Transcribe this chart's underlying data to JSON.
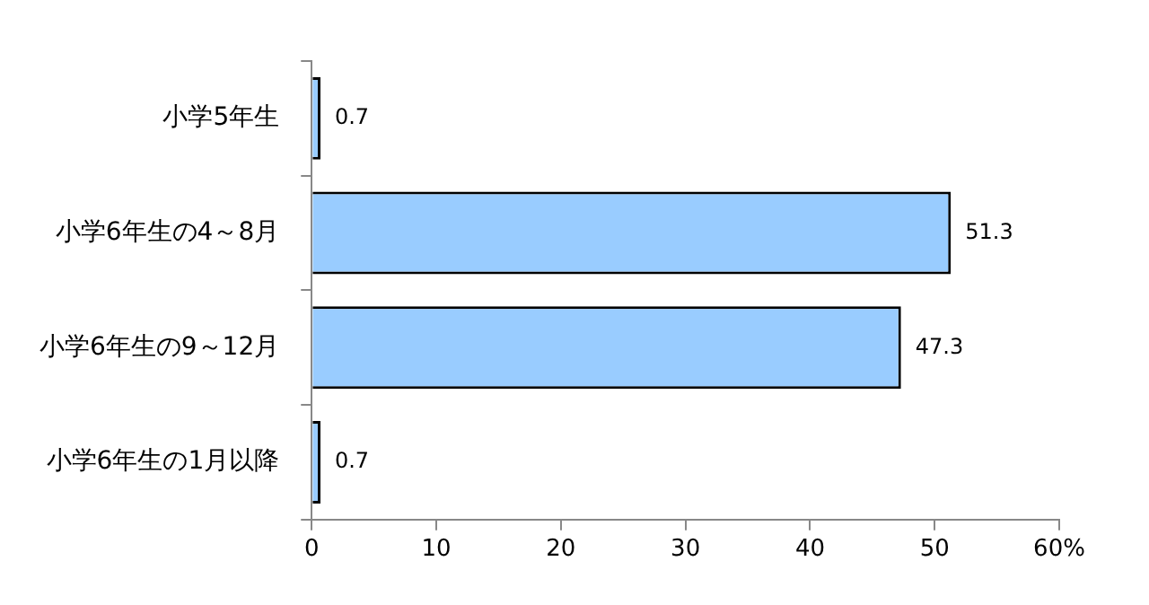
{
  "chart_data": {
    "type": "bar",
    "orientation": "horizontal",
    "categories": [
      "小学5年生",
      "小学6年生の4～8月",
      "小学6年生の9～12月",
      "小学6年生の1月以降"
    ],
    "values": [
      0.7,
      51.3,
      47.3,
      0.7
    ],
    "color": "#99ccff",
    "xlim": [
      0,
      60
    ],
    "xticks": [
      0,
      10,
      20,
      30,
      40,
      50,
      {
        "value": 60,
        "label": "60%"
      }
    ],
    "grid": false,
    "legend": false,
    "data_labels": true
  }
}
